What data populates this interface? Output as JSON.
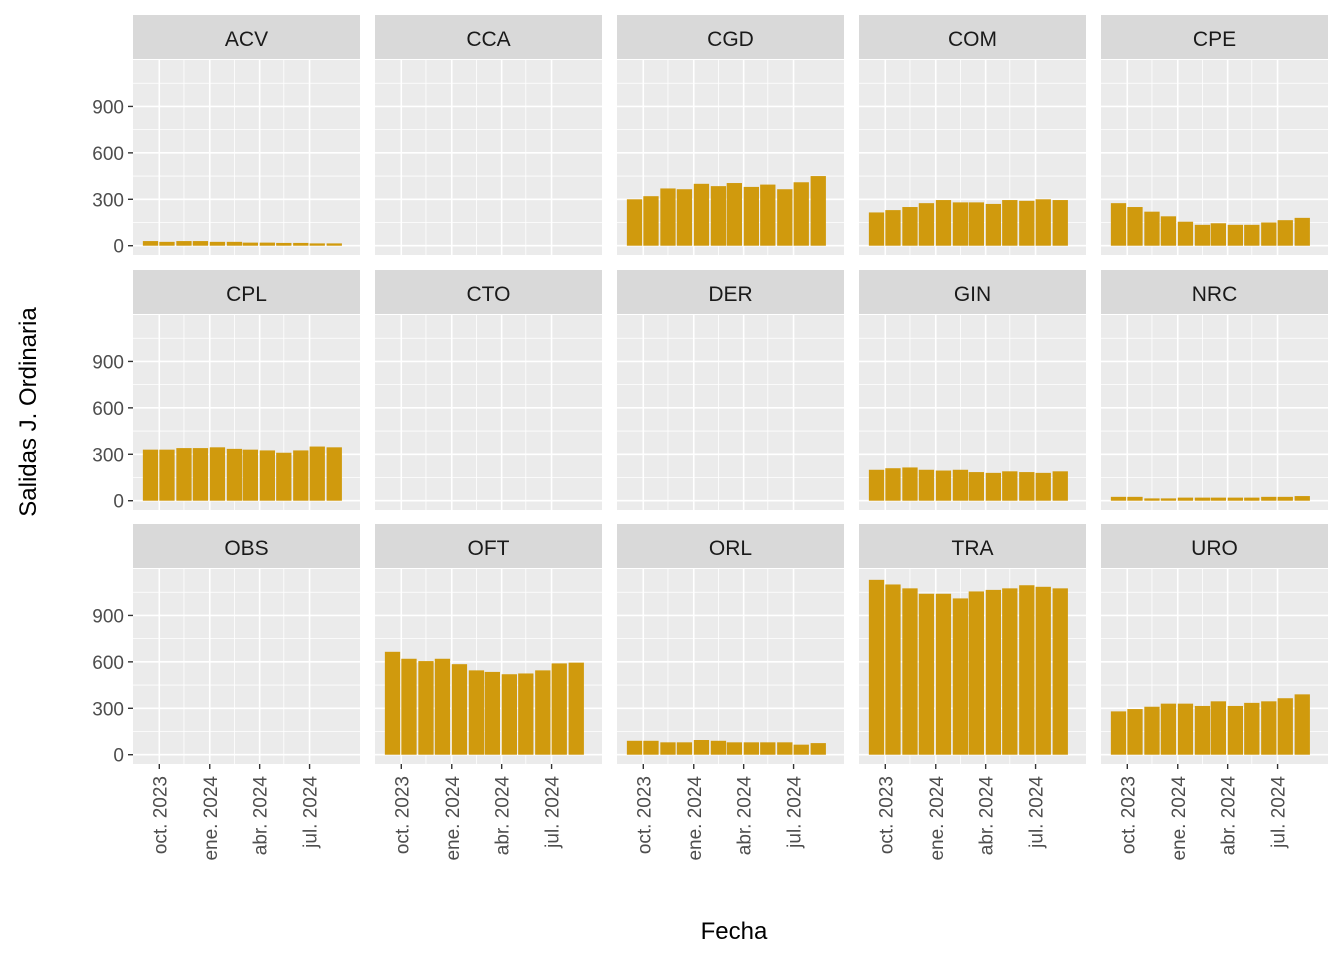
{
  "chart_data": {
    "type": "bar",
    "layout": "facet-grid",
    "xlabel": "Fecha",
    "ylabel": "Salidas J. Ordinaria",
    "x_ticks": [
      "oct. 2023",
      "ene. 2024",
      "abr. 2024",
      "jul. 2024"
    ],
    "y_ticks": [
      0,
      300,
      600,
      900
    ],
    "ylim": [
      -60,
      1200
    ],
    "months": [
      "2023-09",
      "2023-10",
      "2023-11",
      "2023-12",
      "2024-01",
      "2024-02",
      "2024-03",
      "2024-04",
      "2024-05",
      "2024-06",
      "2024-07",
      "2024-08"
    ],
    "grid": true,
    "colors": {
      "bar": "#D09A0D",
      "panel": "#EBEBEB",
      "strip": "#D9D9D9",
      "grid": "#FFFFFF"
    },
    "panels": [
      {
        "name": "ACV",
        "values": [
          30,
          25,
          30,
          30,
          25,
          25,
          20,
          20,
          18,
          18,
          15,
          15
        ]
      },
      {
        "name": "CCA",
        "values": []
      },
      {
        "name": "CGD",
        "values": [
          300,
          320,
          370,
          365,
          400,
          385,
          405,
          380,
          395,
          365,
          410,
          450
        ]
      },
      {
        "name": "COM",
        "values": [
          215,
          230,
          250,
          275,
          295,
          280,
          280,
          270,
          295,
          290,
          300,
          295
        ]
      },
      {
        "name": "CPE",
        "values": [
          275,
          250,
          220,
          190,
          155,
          135,
          145,
          135,
          135,
          150,
          165,
          180
        ]
      },
      {
        "name": "CPL",
        "values": [
          330,
          330,
          340,
          340,
          345,
          335,
          330,
          325,
          310,
          325,
          350,
          345
        ]
      },
      {
        "name": "CTO",
        "values": []
      },
      {
        "name": "DER",
        "values": []
      },
      {
        "name": "GIN",
        "values": [
          200,
          210,
          215,
          200,
          195,
          200,
          185,
          180,
          190,
          185,
          180,
          190
        ]
      },
      {
        "name": "NRC",
        "values": [
          25,
          25,
          15,
          15,
          20,
          20,
          20,
          20,
          20,
          25,
          25,
          30
        ]
      },
      {
        "name": "OBS",
        "values": []
      },
      {
        "name": "OFT",
        "values": [
          665,
          620,
          605,
          620,
          585,
          545,
          535,
          520,
          525,
          545,
          590,
          595
        ]
      },
      {
        "name": "ORL",
        "values": [
          90,
          90,
          80,
          80,
          95,
          90,
          80,
          80,
          80,
          80,
          65,
          75
        ]
      },
      {
        "name": "TRA",
        "values": [
          1130,
          1100,
          1075,
          1040,
          1040,
          1010,
          1055,
          1065,
          1075,
          1095,
          1085,
          1075
        ]
      },
      {
        "name": "URO",
        "values": [
          280,
          295,
          310,
          330,
          330,
          315,
          345,
          315,
          335,
          345,
          365,
          390
        ]
      }
    ]
  }
}
